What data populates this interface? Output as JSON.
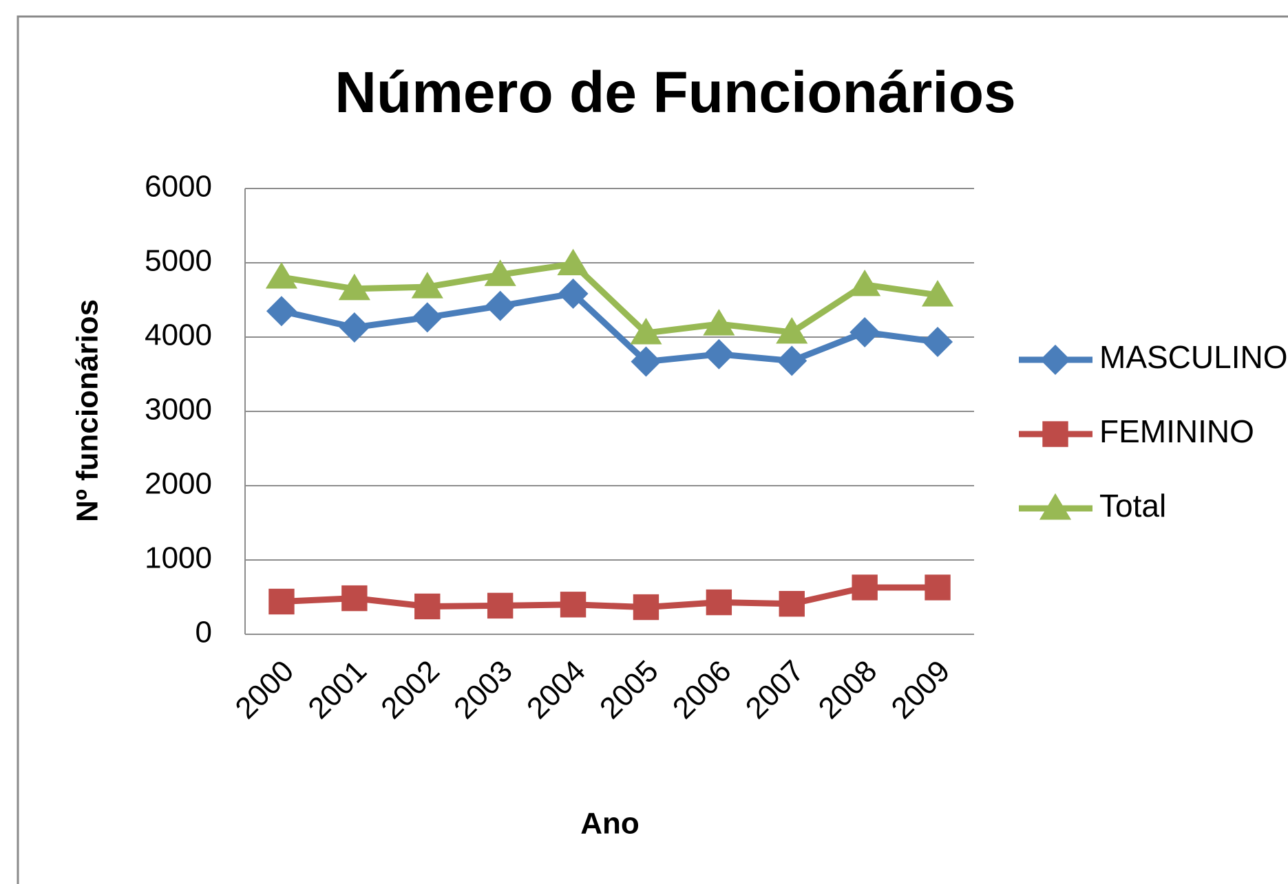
{
  "chart_data": {
    "type": "line",
    "title": "Número de Funcionários",
    "x_label": "Ano",
    "y_label": "Nº funcionários",
    "categories": [
      "2000",
      "2001",
      "2002",
      "2003",
      "2004",
      "2005",
      "2006",
      "2007",
      "2008",
      "2009"
    ],
    "series": [
      {
        "name": "MASCULINO",
        "color": "#4a7ebb",
        "marker": "diamond",
        "values": [
          4350,
          4130,
          4265,
          4420,
          4585,
          3670,
          3770,
          3680,
          4065,
          3935
        ]
      },
      {
        "name": "FEMININO",
        "color": "#be4b48",
        "marker": "square",
        "values": [
          440,
          485,
          375,
          385,
          400,
          365,
          430,
          410,
          630,
          630
        ]
      },
      {
        "name": "Total",
        "color": "#98b954",
        "marker": "triangle",
        "values": [
          4805,
          4650,
          4675,
          4840,
          4985,
          4055,
          4175,
          4065,
          4705,
          4565
        ]
      }
    ],
    "ylim": [
      0,
      6000
    ],
    "yticks": [
      0,
      1000,
      2000,
      3000,
      4000,
      5000,
      6000
    ],
    "grid": true,
    "legend": "right"
  }
}
